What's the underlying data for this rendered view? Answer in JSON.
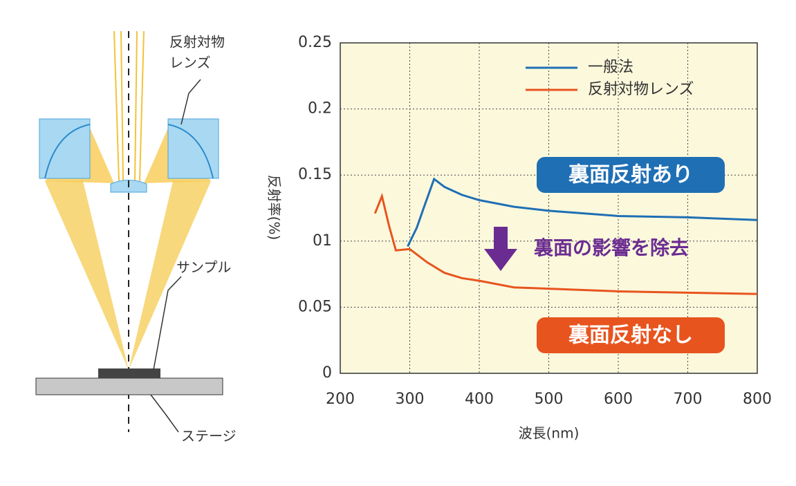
{
  "diagram": {
    "lens_label": [
      "反射対物",
      "レンズ"
    ],
    "sample_label": "サンプル",
    "stage_label": "ステージ"
  },
  "chart_data": {
    "type": "line",
    "xlabel": "波長(nm)",
    "ylabel": "反射率(%)",
    "xlim": [
      200,
      800
    ],
    "xticks": [
      200,
      300,
      400,
      500,
      600,
      700,
      800
    ],
    "ylim": [
      0,
      0.25
    ],
    "yticks": [
      0,
      0.05,
      {
        "value": 0.1,
        "label": "01"
      },
      0.15,
      0.2,
      0.25
    ],
    "grid": true,
    "legend": "upper right",
    "series": [
      {
        "name": "一般法",
        "color": "#1f6fb4",
        "x": [
          297,
          310,
          320,
          335,
          350,
          375,
          400,
          450,
          500,
          550,
          600,
          700,
          800
        ],
        "values": [
          0.096,
          0.11,
          0.125,
          0.147,
          0.141,
          0.135,
          0.131,
          0.126,
          0.123,
          0.121,
          0.119,
          0.118,
          0.116
        ]
      },
      {
        "name": "反射対物レンズ",
        "color": "#e8541e",
        "x": [
          250,
          260,
          270,
          280,
          300,
          325,
          350,
          375,
          400,
          450,
          500,
          600,
          700,
          800
        ],
        "values": [
          0.121,
          0.134,
          0.112,
          0.093,
          0.094,
          0.084,
          0.076,
          0.072,
          0.07,
          0.065,
          0.064,
          0.062,
          0.061,
          0.06
        ]
      }
    ],
    "annotations": [
      "裏面反射あり",
      "裏面の影響を除去",
      "裏面反射なし"
    ]
  }
}
